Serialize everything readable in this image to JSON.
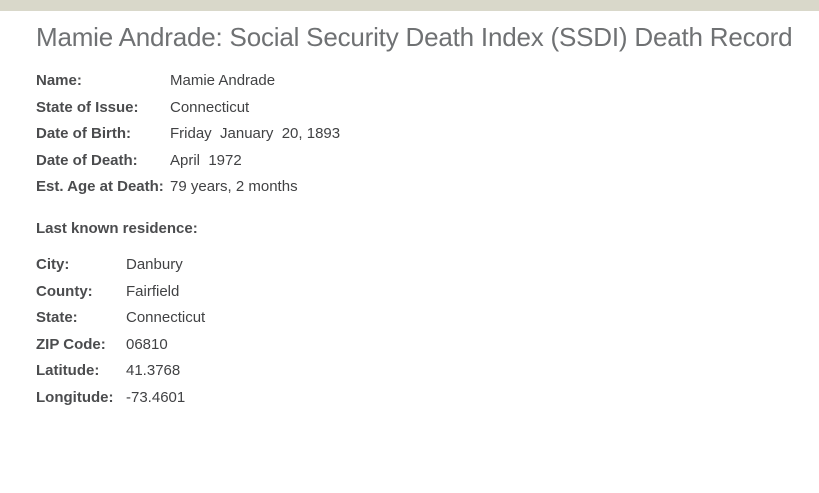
{
  "page": {
    "title": "Mamie Andrade: Social Security Death Index (SSDI) Death Record"
  },
  "record": {
    "fields": [
      {
        "label": "Name:",
        "value": "Mamie Andrade"
      },
      {
        "label": "State of Issue:",
        "value": "Connecticut"
      },
      {
        "label": "Date of Birth:",
        "value": "Friday  January  20, 1893"
      },
      {
        "label": "Date of Death:",
        "value": "April  1972"
      },
      {
        "label": "Est. Age at Death:",
        "value": "79 years, 2 months"
      }
    ]
  },
  "residence": {
    "header": "Last known residence:",
    "fields": [
      {
        "label": "City:",
        "value": "Danbury"
      },
      {
        "label": "County:",
        "value": "Fairfield"
      },
      {
        "label": "State:",
        "value": "Connecticut"
      },
      {
        "label": "ZIP Code:",
        "value": "06810"
      },
      {
        "label": "Latitude:",
        "value": "41.3768"
      },
      {
        "label": "Longitude:",
        "value": "-73.4601"
      }
    ]
  },
  "colors": {
    "top_bar": "#d9d8ca",
    "title": "#6f7173",
    "label": "#4b4c4e",
    "value": "#414244",
    "background": "#ffffff"
  }
}
